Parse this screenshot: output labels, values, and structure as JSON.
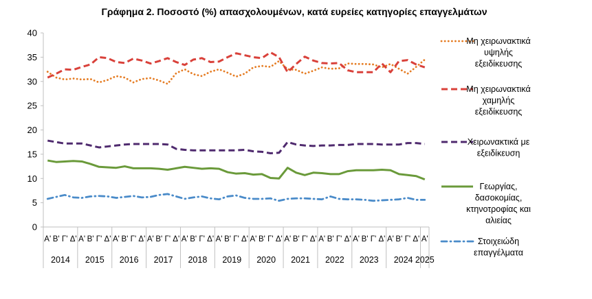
{
  "chart_data": {
    "type": "line",
    "title": "Γράφημα 2. Ποσοστό (%) απασχολουμένων, κατά ευρείες κατηγορίες επαγγελμάτων",
    "xlabel": "",
    "ylabel": "",
    "ylim": [
      0,
      40
    ],
    "yticks": [
      0,
      5,
      10,
      15,
      20,
      25,
      30,
      35,
      40
    ],
    "grid": false,
    "legend_position": "right",
    "categories": [
      "Α'",
      "Β'",
      "Γ'",
      "Δ'",
      "Α'",
      "Β'",
      "Γ'",
      "Δ'",
      "Α'",
      "Β'",
      "Γ'",
      "Δ'",
      "Α'",
      "Β'",
      "Γ'",
      "Δ'",
      "Α'",
      "Β'",
      "Γ'",
      "Δ'",
      "Α'",
      "Β'",
      "Γ'",
      "Δ'",
      "Α'",
      "Β'",
      "Γ'",
      "Δ'",
      "Α'",
      "Β'",
      "Γ'",
      "Δ'",
      "Α'",
      "Β'",
      "Γ'",
      "Δ'",
      "Α'",
      "Β'",
      "Γ'",
      "Δ'",
      "Α'",
      "Β'",
      "Γ'",
      "Δ'",
      "Α'"
    ],
    "years": [
      "2014",
      "2015",
      "2016",
      "2017",
      "2018",
      "2019",
      "2020",
      "2021",
      "2022",
      "2023",
      "2024",
      "2025"
    ],
    "series": [
      {
        "name": "Μη χειρωνακτικά υψηλής εξειδίκευσης",
        "legend_lines": [
          "Μη χειρωνακτικά",
          "υψηλής",
          "εξειδίκευσης"
        ],
        "color": "#E57C23",
        "style": "dotted",
        "values": [
          32.0,
          30.8,
          30.4,
          30.6,
          30.4,
          30.5,
          29.8,
          30.3,
          31.1,
          30.8,
          29.8,
          30.5,
          30.7,
          30.2,
          29.5,
          31.7,
          32.5,
          31.5,
          31.1,
          32.0,
          32.5,
          31.8,
          31.0,
          31.6,
          32.9,
          33.2,
          33.0,
          34.2,
          32.5,
          32.4,
          31.6,
          32.2,
          32.9,
          32.6,
          32.7,
          33.7,
          33.6,
          33.6,
          33.5,
          32.9,
          33.6,
          32.6,
          31.6,
          33.0,
          34.5
        ]
      },
      {
        "name": "Μη χειρωνακτικά χαμηλής εξειδίκευσης",
        "legend_lines": [
          "Μη χειρωνακτικά",
          "χαμηλής",
          "εξειδίκευσης"
        ],
        "color": "#D9413A",
        "style": "dashed",
        "values": [
          30.8,
          31.6,
          32.5,
          32.4,
          33.0,
          33.5,
          35.0,
          34.8,
          34.0,
          33.8,
          34.7,
          34.3,
          33.7,
          34.2,
          34.8,
          34.0,
          33.4,
          34.5,
          34.8,
          34.0,
          34.1,
          35.0,
          35.8,
          35.4,
          35.0,
          34.8,
          36.0,
          35.0,
          31.9,
          33.6,
          35.1,
          34.3,
          33.8,
          33.7,
          33.8,
          32.3,
          31.9,
          31.9,
          31.9,
          33.7,
          31.9,
          34.2,
          34.4,
          33.5,
          32.9
        ]
      },
      {
        "name": "Χειρωνακτικά με εξειδίκευση",
        "legend_lines": [
          "Χειρωνακτικά με",
          "εξειδίκευση"
        ],
        "color": "#4F2A6E",
        "style": "dashed",
        "values": [
          17.8,
          17.5,
          17.2,
          17.2,
          17.2,
          16.8,
          16.4,
          16.6,
          16.8,
          17.0,
          17.1,
          17.1,
          17.1,
          17.1,
          17.0,
          16.1,
          15.9,
          15.8,
          15.8,
          15.8,
          15.8,
          15.8,
          15.8,
          15.9,
          15.6,
          15.5,
          15.2,
          15.3,
          17.5,
          17.0,
          16.8,
          16.7,
          16.8,
          16.8,
          16.9,
          16.9,
          17.1,
          17.1,
          17.1,
          17.0,
          17.0,
          17.0,
          17.3,
          17.3,
          17.1
        ]
      },
      {
        "name": "Γεωργίας, δασοκομίας, κτηνοτροφίας και αλιείας",
        "legend_lines": [
          "Γεωργίας,",
          "δασοκομίας,",
          "κτηνοτροφίας και",
          "αλιείας"
        ],
        "color": "#6A9A3A",
        "style": "solid",
        "values": [
          13.7,
          13.4,
          13.5,
          13.6,
          13.5,
          13.0,
          12.4,
          12.3,
          12.2,
          12.5,
          12.1,
          12.1,
          12.1,
          12.0,
          11.8,
          12.1,
          12.4,
          12.2,
          12.0,
          12.1,
          12.0,
          11.3,
          11.0,
          11.1,
          10.8,
          10.9,
          10.1,
          10.0,
          12.2,
          11.2,
          10.7,
          11.2,
          11.1,
          10.9,
          10.9,
          11.5,
          11.7,
          11.7,
          11.7,
          11.8,
          11.7,
          10.9,
          10.7,
          10.5,
          9.8
        ]
      },
      {
        "name": "Στοιχειώδη επαγγέλματα",
        "legend_lines": [
          "Στοιχειώδη",
          "επαγγέλματα"
        ],
        "color": "#4A8BC9",
        "style": "dashdot",
        "values": [
          5.8,
          6.2,
          6.6,
          6.1,
          6.0,
          6.3,
          6.4,
          6.3,
          6.0,
          6.2,
          6.4,
          6.1,
          6.2,
          6.6,
          6.8,
          6.3,
          5.8,
          6.1,
          6.3,
          5.9,
          5.7,
          6.3,
          6.5,
          6.0,
          5.8,
          5.8,
          5.9,
          5.4,
          5.8,
          5.9,
          5.9,
          5.8,
          5.7,
          6.3,
          5.8,
          5.7,
          5.7,
          5.6,
          5.4,
          5.5,
          5.6,
          5.7,
          6.0,
          5.6,
          5.6
        ]
      }
    ]
  }
}
